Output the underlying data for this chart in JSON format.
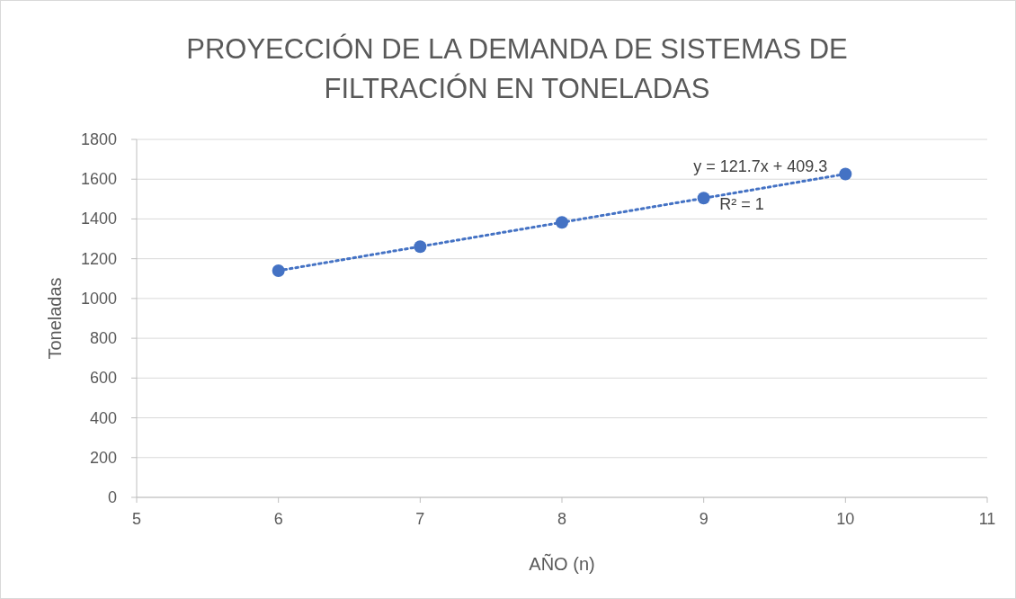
{
  "chart_data": {
    "type": "scatter",
    "title": "PROYECCIÓN DE LA DEMANDA DE SISTEMAS DE FILTRACIÓN EN TONELADAS",
    "xlabel": "AÑO (n)",
    "ylabel": "Toneladas",
    "xlim": [
      5,
      11
    ],
    "xticks": [
      5,
      6,
      7,
      8,
      9,
      10,
      11
    ],
    "ylim": [
      0,
      1800
    ],
    "yticks": [
      0,
      200,
      400,
      600,
      800,
      1000,
      1200,
      1400,
      1600,
      1800
    ],
    "grid": "y",
    "series": [
      {
        "color": "#4472c4",
        "marker": "circle",
        "x": [
          6,
          7,
          8,
          9,
          10
        ],
        "values": [
          1140,
          1261,
          1383,
          1505,
          1626
        ]
      },
      {
        "type": "line",
        "color": "#4472c4",
        "marker": "none",
        "line_style": "dotted",
        "x": [
          6,
          10
        ],
        "values": [
          1140,
          1626
        ]
      }
    ],
    "annotations": [
      "y = 121.7x + 409.3",
      "R² = 1"
    ]
  }
}
